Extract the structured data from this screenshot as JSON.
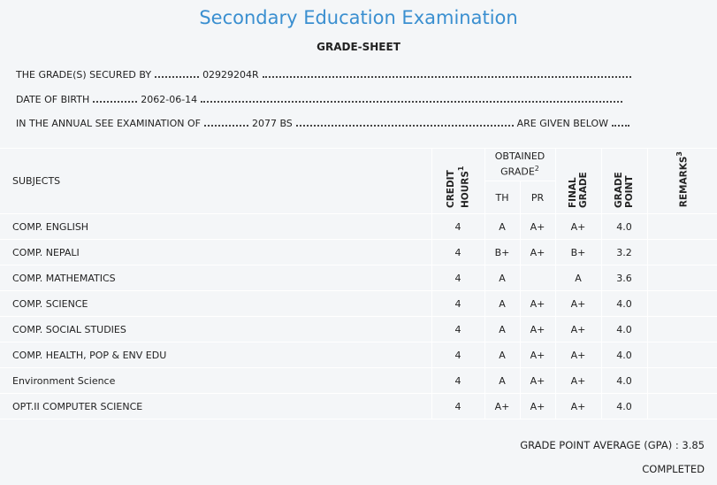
{
  "header": {
    "title": "Secondary Education Examination",
    "subtitle": "GRADE-SHEET"
  },
  "info": {
    "secured_by": {
      "label": "THE GRADE(S) SECURED BY",
      "value": "02929204R"
    },
    "dob": {
      "label": "DATE OF BIRTH",
      "value": "2062-06-14"
    },
    "exam": {
      "label": "IN THE ANNUAL SEE EXAMINATION OF",
      "value": "2077 BS",
      "suffix": "ARE GIVEN BELOW"
    }
  },
  "table": {
    "columns": {
      "subjects": "SUBJECTS",
      "credit_hours": {
        "text": "CREDIT HOURS",
        "note": "1"
      },
      "obtained_grade": {
        "text": "OBTAINED GRADE",
        "note": "2"
      },
      "th": "TH",
      "pr": "PR",
      "final_grade": "FINAL GRADE",
      "grade_point": "GRADE POINT",
      "remarks": {
        "text": "REMARKS",
        "note": "3"
      }
    },
    "rows": [
      [
        "COMP. ENGLISH",
        "4",
        "A",
        "A+",
        "A+",
        "4.0"
      ],
      [
        "COMP. NEPALI",
        "4",
        "B+",
        "A+",
        "B+",
        "3.2"
      ],
      [
        "COMP. MATHEMATICS",
        "4",
        "A",
        null,
        "A",
        "3.6"
      ],
      [
        "COMP. SCIENCE",
        "4",
        "A",
        "A+",
        "A+",
        "4.0"
      ],
      [
        "COMP. SOCIAL STUDIES",
        "4",
        "A",
        "A+",
        "A+",
        "4.0"
      ],
      [
        "COMP. HEALTH, POP & ENV EDU",
        "4",
        "A",
        "A+",
        "A+",
        "4.0"
      ],
      [
        "Environment Science",
        "4",
        "A",
        "A+",
        "A+",
        "4.0"
      ],
      [
        "OPT.II COMPUTER SCIENCE",
        "4",
        "A+",
        "A+",
        "A+",
        "4.0"
      ]
    ]
  },
  "summary": {
    "gpa_label": "GRADE POINT AVERAGE (GPA) :",
    "gpa": "3.85",
    "status": "COMPLETED"
  }
}
